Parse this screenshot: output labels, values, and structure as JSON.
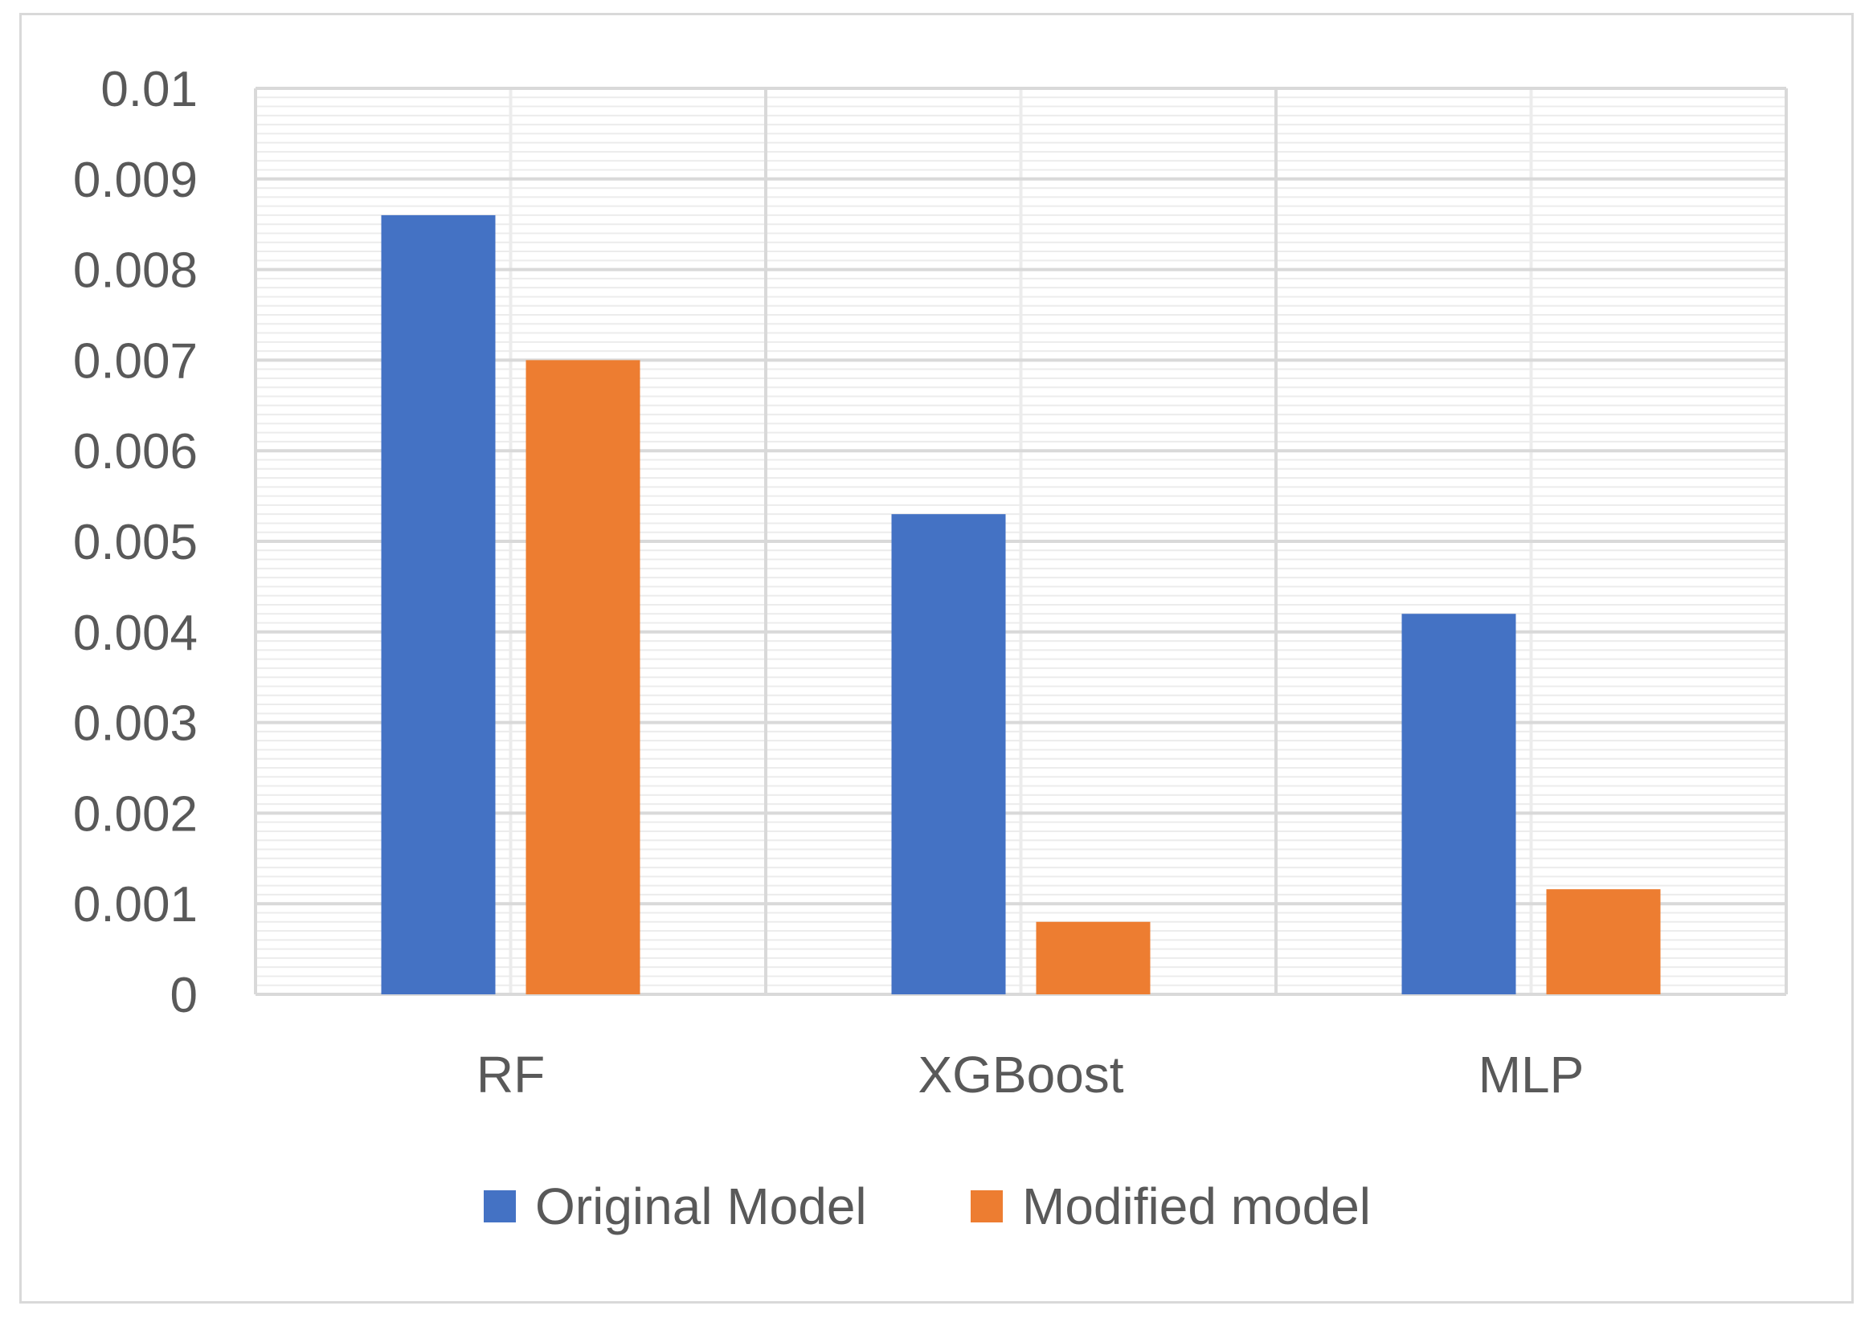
{
  "chart_data": {
    "type": "bar",
    "title": "",
    "xlabel": "",
    "ylabel": "",
    "categories": [
      "RF",
      "XGBoost",
      "MLP"
    ],
    "series": [
      {
        "name": "Original Model",
        "color": "#4472c4",
        "values": [
          0.0086,
          0.0053,
          0.0042
        ]
      },
      {
        "name": "Modified model",
        "color": "#ed7d31",
        "values": [
          0.007,
          0.0008,
          0.00116
        ]
      }
    ],
    "ylim": [
      0,
      0.01
    ],
    "yticks": [
      "0",
      "0.001",
      "0.002",
      "0.003",
      "0.004",
      "0.005",
      "0.006",
      "0.007",
      "0.008",
      "0.009",
      "0.01"
    ],
    "grid": true,
    "legend_position": "bottom"
  }
}
